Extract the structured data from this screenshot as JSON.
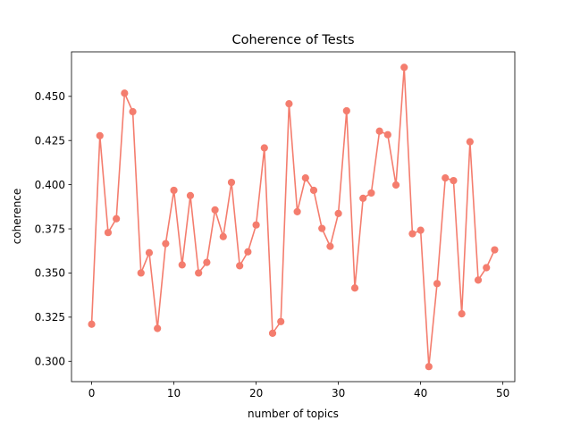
{
  "chart_data": {
    "type": "line",
    "title": "Coherence of Tests",
    "xlabel": "number of topics",
    "ylabel": "coherence",
    "xlim": [
      -2.45,
      51.45
    ],
    "ylim": [
      0.2885,
      0.4752
    ],
    "xticks": [
      0,
      10,
      20,
      30,
      40,
      50
    ],
    "yticks": [
      0.3,
      0.325,
      0.35,
      0.375,
      0.4,
      0.425,
      0.45
    ],
    "xtick_labels": [
      "0",
      "10",
      "20",
      "30",
      "40",
      "50"
    ],
    "ytick_labels": [
      "0.300",
      "0.325",
      "0.350",
      "0.375",
      "0.400",
      "0.425",
      "0.450"
    ],
    "grid": false,
    "color": "#f47d6e",
    "series": [
      {
        "x": [
          0,
          1,
          2,
          3,
          4,
          5,
          6,
          7,
          8,
          9,
          10,
          11,
          12,
          13,
          14,
          15,
          16,
          17,
          18,
          19,
          20,
          21,
          22,
          23,
          24,
          25,
          26,
          27,
          28,
          29,
          30,
          31,
          32,
          33,
          34,
          35,
          36,
          37,
          38,
          39,
          40,
          41,
          42,
          43,
          44,
          45,
          46,
          47,
          48,
          49
        ],
        "y": [
          0.321,
          0.4277,
          0.3729,
          0.3807,
          0.4518,
          0.4413,
          0.35,
          0.3615,
          0.3186,
          0.3666,
          0.3968,
          0.3546,
          0.3938,
          0.35,
          0.356,
          0.3857,
          0.3706,
          0.4013,
          0.3541,
          0.362,
          0.3772,
          0.4208,
          0.3159,
          0.3225,
          0.4458,
          0.3847,
          0.4038,
          0.3968,
          0.3752,
          0.3651,
          0.3837,
          0.4418,
          0.3415,
          0.3923,
          0.3953,
          0.4303,
          0.4283,
          0.3998,
          0.4664,
          0.3722,
          0.3742,
          0.297,
          0.344,
          0.4038,
          0.4023,
          0.3269,
          0.4243,
          0.346,
          0.353,
          0.3631
        ]
      }
    ]
  }
}
